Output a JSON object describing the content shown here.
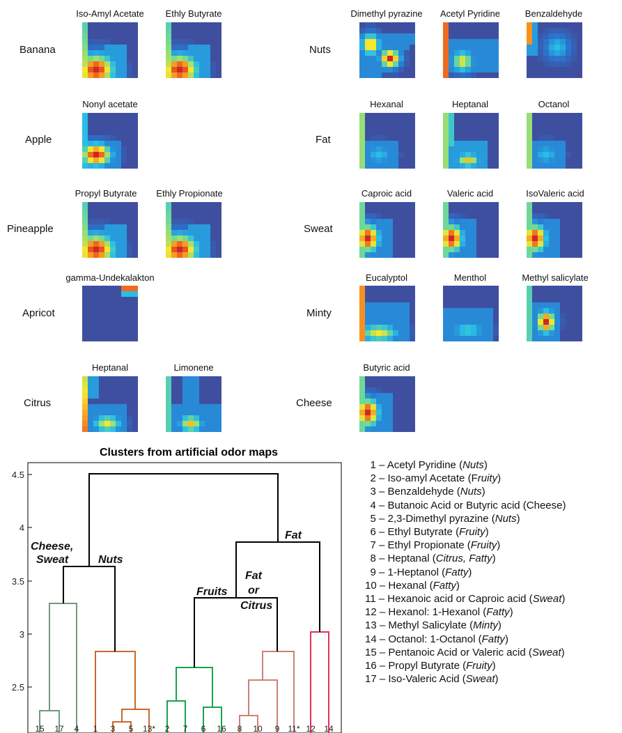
{
  "maps": {
    "rows": [
      {
        "label": "Banana",
        "maps": [
          {
            "name": "Iso-Amyl Acetate",
            "pattern": "banana"
          },
          {
            "name": "Ethly Butyrate",
            "pattern": "banana"
          }
        ]
      },
      {
        "label": "Apple",
        "maps": [
          {
            "name": "Nonyl acetate",
            "pattern": "apple"
          }
        ]
      },
      {
        "label": "Pineapple",
        "maps": [
          {
            "name": "Propyl Butyrate",
            "pattern": "banana"
          },
          {
            "name": "Ethly Propionate",
            "pattern": "banana"
          }
        ]
      },
      {
        "label": "Apricot",
        "maps": [
          {
            "name": "gamma-Undekalakton",
            "pattern": "apricot"
          }
        ]
      },
      {
        "label": "Citrus",
        "maps": [
          {
            "name": "Heptanal",
            "pattern": "citrus"
          },
          {
            "name": "Limonene",
            "pattern": "limonene"
          }
        ]
      },
      {
        "label": "Nuts",
        "maps": [
          {
            "name": "Dimethyl pyrazine",
            "pattern": "pyrazine"
          },
          {
            "name": "Acetyl Pyridine",
            "pattern": "pyridine"
          },
          {
            "name": "Benzaldehyde",
            "pattern": "benzaldehyde"
          }
        ]
      },
      {
        "label": "Fat",
        "maps": [
          {
            "name": "Hexanal",
            "pattern": "fat1"
          },
          {
            "name": "Heptanal",
            "pattern": "fat2"
          },
          {
            "name": "Octanol",
            "pattern": "fat1"
          }
        ]
      },
      {
        "label": "Sweat",
        "maps": [
          {
            "name": "Caproic acid",
            "pattern": "sweat"
          },
          {
            "name": "Valeric acid",
            "pattern": "sweat"
          },
          {
            "name": "IsoValeric acid",
            "pattern": "sweat"
          }
        ]
      },
      {
        "label": "Minty",
        "maps": [
          {
            "name": "Eucalyptol",
            "pattern": "eucalyptol"
          },
          {
            "name": "Menthol",
            "pattern": "menthol"
          },
          {
            "name": "Methyl salicylate",
            "pattern": "salicylate"
          }
        ]
      },
      {
        "label": "Cheese",
        "maps": [
          {
            "name": "Butyric acid",
            "pattern": "sweat"
          }
        ]
      }
    ]
  },
  "dendrogram": {
    "title": "Clusters from artificial odor maps",
    "yticks": [
      "4.5",
      "4",
      "3.5",
      "3",
      "2.5"
    ],
    "leaves": [
      "15",
      "17",
      "4",
      "1",
      "3",
      "5",
      "13*",
      "2",
      "7",
      "6",
      "16",
      "8",
      "10",
      "9",
      "11*",
      "12",
      "14"
    ],
    "annotations": {
      "cheese": "Cheese,",
      "sweat": "Sweat",
      "nuts": "Nuts",
      "fat_top": "Fat",
      "fruits": "Fruits",
      "fat": "Fat",
      "or": "or",
      "citrus": "Citrus"
    },
    "colors": {
      "green_gray": "#6e9a7c",
      "orange": "#c8692a",
      "green": "#1aa34a",
      "pink": "#cc8274",
      "red": "#e0315a",
      "black": "#000000"
    }
  },
  "legend": [
    {
      "n": "1",
      "text": "Acetyl Pyridine (",
      "cat": "Nuts",
      "tail": ")"
    },
    {
      "n": "2",
      "text": "Iso-amyl Acetate (F",
      "cat": "ruity",
      "tail": ")"
    },
    {
      "n": "3",
      "text": "Benzaldehyde (",
      "cat": "Nuts",
      "tail": ")"
    },
    {
      "n": "4",
      "text": "Butanoic Acid or Butyric acid (Cheese)",
      "cat": "",
      "tail": ""
    },
    {
      "n": "5",
      "text": "2,3-Dimethyl pyrazine (",
      "cat": "Nuts",
      "tail": ")"
    },
    {
      "n": "6",
      "text": "Ethyl Butyrate (",
      "cat": "Fruity",
      "tail": ")"
    },
    {
      "n": "7",
      "text": "Ethyl Propionate (",
      "cat": "Fruity",
      "tail": ")"
    },
    {
      "n": "8",
      "text": "Heptanal (",
      "cat": "Citrus, Fatty",
      "tail": ")"
    },
    {
      "n": "9",
      "text": "1-Heptanol (",
      "cat": "Fatty",
      "tail": ")"
    },
    {
      "n": "10",
      "text": "Hexanal (",
      "cat": "Fatty",
      "tail": ")"
    },
    {
      "n": "11",
      "text": "Hexanoic acid or Caproic acid (",
      "cat": "Sweat",
      "tail": ")"
    },
    {
      "n": "12",
      "text": "Hexanol: 1-Hexanol (",
      "cat": "Fatty",
      "tail": ")"
    },
    {
      "n": "13",
      "text": "Methyl Salicylate (",
      "cat": "Minty",
      "tail": ")"
    },
    {
      "n": "14",
      "text": "Octanol: 1-Octanol (",
      "cat": "Fatty",
      "tail": ")"
    },
    {
      "n": "15",
      "text": "Pentanoic Acid or Valeric acid (",
      "cat": "Sweat",
      "tail": ")"
    },
    {
      "n": "16",
      "text": "Propyl Butyrate (",
      "cat": "Fruity",
      "tail": ")"
    },
    {
      "n": "17",
      "text": "Iso-Valeric Acid (",
      "cat": "Sweat",
      "tail": ")"
    }
  ]
}
